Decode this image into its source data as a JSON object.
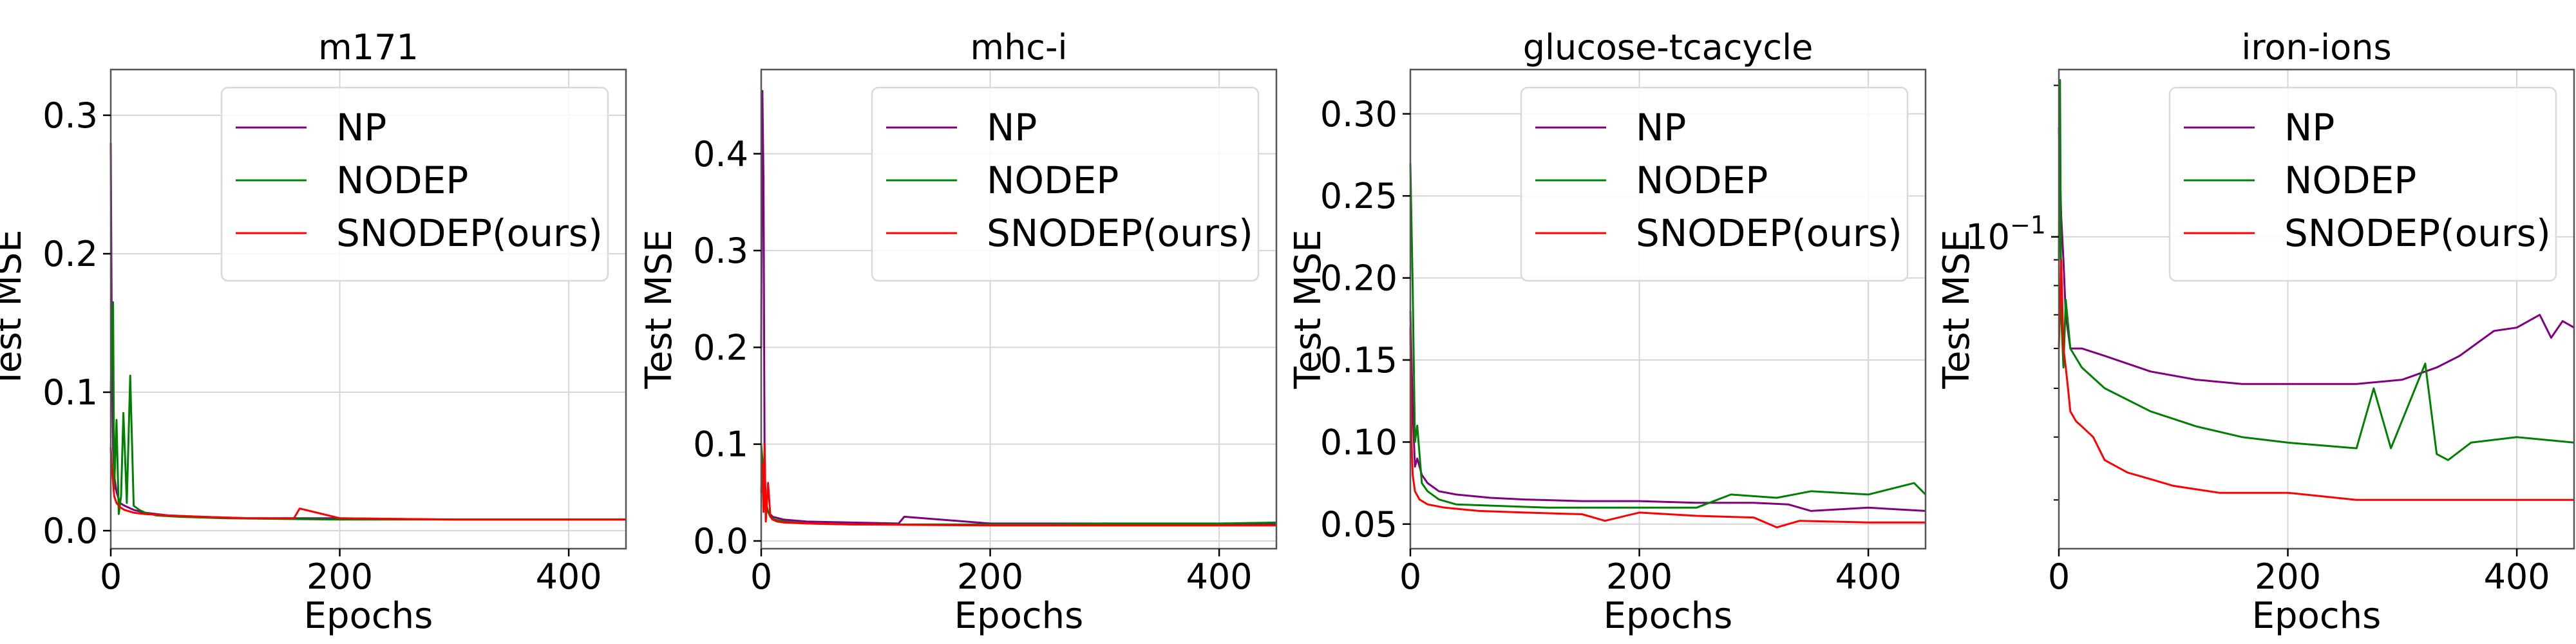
{
  "chart_data": [
    {
      "type": "line",
      "title": "m171",
      "xlabel": "Epochs",
      "ylabel": "Test MSE",
      "xlim": [
        0,
        450
      ],
      "ylim": [
        -0.013,
        0.333
      ],
      "xticks": [
        0,
        200,
        400
      ],
      "yticks": [
        0.0,
        0.1,
        0.2,
        0.3
      ],
      "ytick_labels": [
        "0.0",
        "0.1",
        "0.2",
        "0.3"
      ],
      "log_scale": false,
      "grid": true,
      "legend_position": "top-right",
      "series": [
        {
          "name": "NP",
          "color": "#800080",
          "x": [
            0,
            1,
            2,
            3,
            5,
            8,
            12,
            20,
            30,
            50,
            80,
            120,
            160,
            200,
            300,
            400,
            450
          ],
          "y": [
            0.28,
            0.12,
            0.06,
            0.04,
            0.028,
            0.02,
            0.018,
            0.015,
            0.013,
            0.011,
            0.01,
            0.009,
            0.009,
            0.009,
            0.008,
            0.008,
            0.008
          ]
        },
        {
          "name": "NODEP",
          "color": "#008000",
          "x": [
            0,
            2,
            3,
            5,
            7,
            9,
            11,
            14,
            17,
            20,
            25,
            30,
            40,
            60,
            100,
            200,
            300,
            400,
            450
          ],
          "y": [
            0.1,
            0.165,
            0.03,
            0.08,
            0.012,
            0.025,
            0.085,
            0.02,
            0.112,
            0.018,
            0.015,
            0.013,
            0.011,
            0.01,
            0.009,
            0.008,
            0.008,
            0.008,
            0.008
          ]
        },
        {
          "name": "SNODEP(ours)",
          "color": "#ff0000",
          "x": [
            0,
            1,
            2,
            3,
            5,
            8,
            12,
            20,
            30,
            50,
            80,
            120,
            160,
            165,
            200,
            300,
            400,
            450
          ],
          "y": [
            0.06,
            0.045,
            0.035,
            0.025,
            0.02,
            0.017,
            0.015,
            0.013,
            0.012,
            0.011,
            0.01,
            0.009,
            0.009,
            0.016,
            0.009,
            0.008,
            0.008,
            0.008
          ]
        }
      ]
    },
    {
      "type": "line",
      "title": "mhc-i",
      "xlabel": "Epochs",
      "ylabel": "Test MSE",
      "xlim": [
        0,
        450
      ],
      "ylim": [
        -0.008,
        0.487
      ],
      "xticks": [
        0,
        200,
        400
      ],
      "yticks": [
        0.0,
        0.1,
        0.2,
        0.3,
        0.4
      ],
      "ytick_labels": [
        "0.0",
        "0.1",
        "0.2",
        "0.3",
        "0.4"
      ],
      "log_scale": false,
      "grid": true,
      "legend_position": "top-right",
      "series": [
        {
          "name": "NP",
          "color": "#800080",
          "x": [
            0,
            1,
            2,
            3,
            4,
            6,
            10,
            20,
            40,
            80,
            120,
            125,
            200,
            300,
            400,
            450
          ],
          "y": [
            0.2,
            0.465,
            0.37,
            0.08,
            0.04,
            0.03,
            0.025,
            0.022,
            0.02,
            0.019,
            0.018,
            0.025,
            0.018,
            0.018,
            0.017,
            0.017
          ]
        },
        {
          "name": "NODEP",
          "color": "#008000",
          "x": [
            0,
            2,
            4,
            6,
            8,
            12,
            20,
            40,
            80,
            200,
            250,
            300,
            400,
            450
          ],
          "y": [
            0.1,
            0.07,
            0.04,
            0.03,
            0.025,
            0.022,
            0.02,
            0.018,
            0.017,
            0.017,
            0.017,
            0.018,
            0.018,
            0.019
          ]
        },
        {
          "name": "SNODEP(ours)",
          "color": "#ff0000",
          "x": [
            0,
            1,
            2,
            3,
            4,
            6,
            8,
            10,
            14,
            20,
            40,
            80,
            200,
            400,
            450
          ],
          "y": [
            0.05,
            0.08,
            0.03,
            0.1,
            0.02,
            0.06,
            0.025,
            0.022,
            0.02,
            0.019,
            0.018,
            0.017,
            0.016,
            0.016,
            0.016
          ]
        }
      ]
    },
    {
      "type": "line",
      "title": "glucose-tcacycle",
      "xlabel": "Epochs",
      "ylabel": "Test MSE",
      "xlim": [
        0,
        450
      ],
      "ylim": [
        0.035,
        0.327
      ],
      "xticks": [
        0,
        200,
        400
      ],
      "yticks": [
        0.05,
        0.1,
        0.15,
        0.2,
        0.25,
        0.3
      ],
      "ytick_labels": [
        "0.05",
        "0.10",
        "0.15",
        "0.20",
        "0.25",
        "0.30"
      ],
      "log_scale": false,
      "grid": true,
      "legend_position": "top-right",
      "series": [
        {
          "name": "NP",
          "color": "#800080",
          "x": [
            0,
            2,
            4,
            6,
            10,
            15,
            25,
            40,
            70,
            100,
            150,
            200,
            250,
            300,
            330,
            350,
            400,
            450
          ],
          "y": [
            0.18,
            0.12,
            0.085,
            0.09,
            0.08,
            0.075,
            0.07,
            0.068,
            0.066,
            0.065,
            0.064,
            0.064,
            0.063,
            0.063,
            0.062,
            0.058,
            0.06,
            0.058
          ]
        },
        {
          "name": "NODEP",
          "color": "#008000",
          "x": [
            0,
            2,
            4,
            6,
            10,
            15,
            25,
            40,
            80,
            120,
            200,
            250,
            280,
            320,
            350,
            400,
            440,
            450
          ],
          "y": [
            0.27,
            0.195,
            0.1,
            0.11,
            0.075,
            0.07,
            0.065,
            0.062,
            0.061,
            0.06,
            0.06,
            0.06,
            0.068,
            0.066,
            0.07,
            0.068,
            0.075,
            0.068
          ]
        },
        {
          "name": "SNODEP(ours)",
          "color": "#ff0000",
          "x": [
            0,
            1,
            2,
            4,
            8,
            15,
            30,
            60,
            100,
            150,
            170,
            200,
            250,
            300,
            320,
            340,
            400,
            450
          ],
          "y": [
            0.17,
            0.1,
            0.08,
            0.07,
            0.065,
            0.062,
            0.06,
            0.058,
            0.057,
            0.056,
            0.052,
            0.057,
            0.055,
            0.054,
            0.048,
            0.052,
            0.051,
            0.051
          ]
        }
      ]
    },
    {
      "type": "line",
      "title": "iron-ions",
      "xlabel": "Epochs",
      "ylabel": "Test MSE",
      "xlim": [
        0,
        450
      ],
      "ylim": [
        0.024,
        0.215
      ],
      "xticks": [
        0,
        200,
        400
      ],
      "yticks": [
        0.1
      ],
      "ytick_labels": [
        "10^{-1}"
      ],
      "log_scale": true,
      "grid": true,
      "legend_position": "top-right",
      "series": [
        {
          "name": "NP",
          "color": "#800080",
          "x": [
            0,
            2,
            4,
            6,
            10,
            20,
            40,
            80,
            120,
            160,
            200,
            260,
            300,
            330,
            350,
            380,
            400,
            420,
            430,
            440,
            450
          ],
          "y": [
            0.165,
            0.11,
            0.09,
            0.07,
            0.06,
            0.06,
            0.058,
            0.054,
            0.052,
            0.051,
            0.051,
            0.051,
            0.052,
            0.055,
            0.058,
            0.065,
            0.066,
            0.07,
            0.063,
            0.068,
            0.066
          ]
        },
        {
          "name": "NODEP",
          "color": "#008000",
          "x": [
            0,
            1,
            2,
            4,
            6,
            10,
            20,
            40,
            80,
            120,
            160,
            200,
            260,
            275,
            290,
            320,
            330,
            340,
            360,
            400,
            450
          ],
          "y": [
            0.09,
            0.205,
            0.07,
            0.055,
            0.075,
            0.06,
            0.055,
            0.05,
            0.045,
            0.042,
            0.04,
            0.039,
            0.038,
            0.05,
            0.038,
            0.056,
            0.037,
            0.036,
            0.039,
            0.04,
            0.039
          ]
        },
        {
          "name": "SNODEP(ours)",
          "color": "#ff0000",
          "x": [
            0,
            2,
            4,
            6,
            8,
            10,
            15,
            20,
            30,
            40,
            60,
            80,
            100,
            140,
            200,
            260,
            300,
            350,
            400,
            450
          ],
          "y": [
            0.06,
            0.09,
            0.06,
            0.055,
            0.05,
            0.045,
            0.043,
            0.042,
            0.04,
            0.036,
            0.034,
            0.033,
            0.032,
            0.031,
            0.031,
            0.03,
            0.03,
            0.03,
            0.03,
            0.03
          ]
        }
      ]
    }
  ]
}
